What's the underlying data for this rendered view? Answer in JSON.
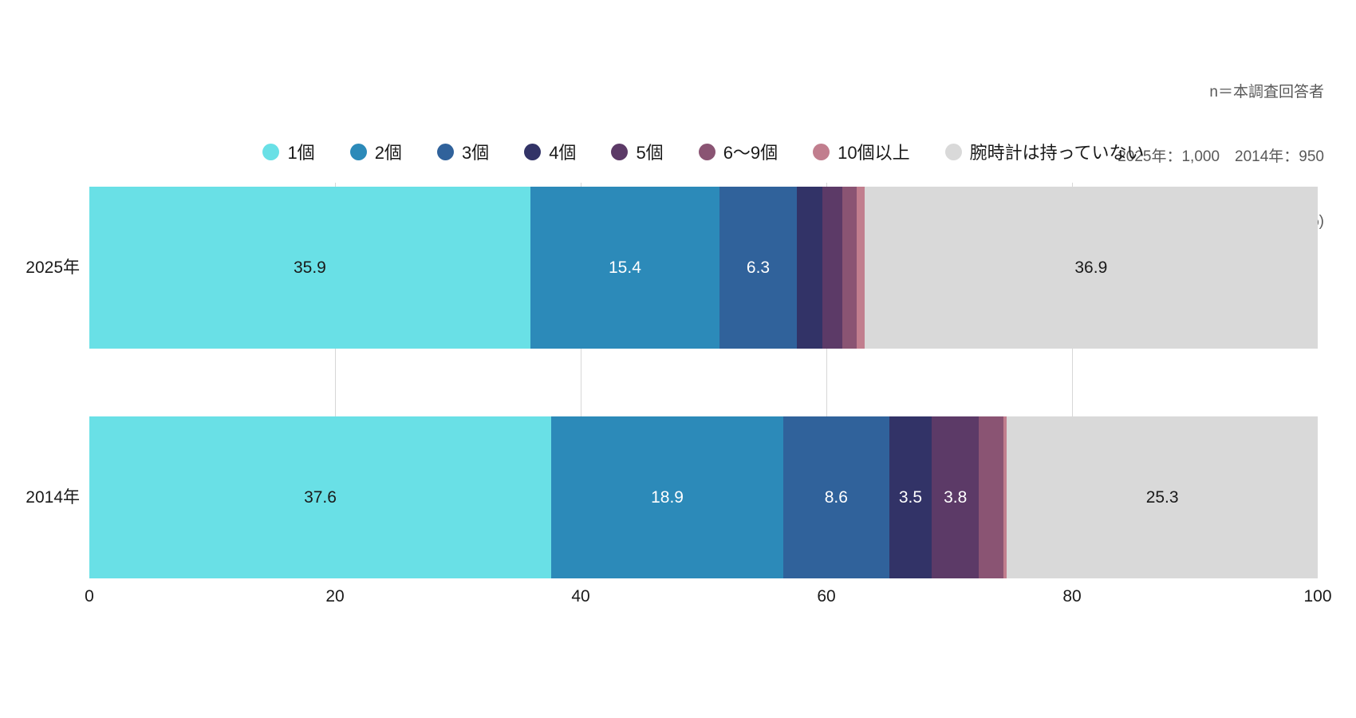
{
  "notes": {
    "line1": "n＝本調査回答者",
    "line2": "2025年：1,000　2014年：950",
    "line3": "単位 (%)"
  },
  "chart_data": {
    "type": "bar",
    "orientation": "horizontal",
    "stacked": true,
    "stack_total": 100,
    "unit": "%",
    "title": "",
    "xlabel": "",
    "ylabel": "",
    "xlim": [
      0,
      100
    ],
    "xticks": [
      "0",
      "20",
      "40",
      "60",
      "80",
      "100"
    ],
    "xtick_values": [
      0,
      20,
      40,
      60,
      80,
      100
    ],
    "gridlines": [
      20,
      40,
      60,
      80
    ],
    "grid_color": "#d7d7d7",
    "legend_position": "top",
    "categories": [
      "2025年",
      "2014年"
    ],
    "series": [
      {
        "name": "1個",
        "color": "#69e0e6",
        "values": [
          35.9,
          37.6
        ],
        "labels": [
          "35.9",
          "37.6"
        ],
        "label_style": "dark"
      },
      {
        "name": "2個",
        "color": "#2c8ab9",
        "values": [
          15.4,
          18.9
        ],
        "labels": [
          "15.4",
          "18.9"
        ],
        "label_style": "light"
      },
      {
        "name": "3個",
        "color": "#30629b",
        "values": [
          6.3,
          8.6
        ],
        "labels": [
          "6.3",
          "8.6"
        ],
        "label_style": "light"
      },
      {
        "name": "4個",
        "color": "#323367",
        "values": [
          2.1,
          3.5
        ],
        "labels": [
          null,
          "3.5"
        ],
        "label_style": "light"
      },
      {
        "name": "5個",
        "color": "#5c3a67",
        "values": [
          1.6,
          3.8
        ],
        "labels": [
          null,
          "3.8"
        ],
        "label_style": "light"
      },
      {
        "name": "6〜9個",
        "color": "#8a5473",
        "values": [
          1.2,
          2.0
        ],
        "labels": [
          null,
          null
        ],
        "label_style": "light"
      },
      {
        "name": "10個以上",
        "color": "#c17e8e",
        "values": [
          0.6,
          0.3
        ],
        "labels": [
          null,
          null
        ],
        "label_style": "light"
      },
      {
        "name": "腕時計は持っていない",
        "color": "#d9d9d9",
        "values": [
          36.9,
          25.3
        ],
        "labels": [
          "36.9",
          "25.3"
        ],
        "label_style": "dark"
      }
    ]
  }
}
